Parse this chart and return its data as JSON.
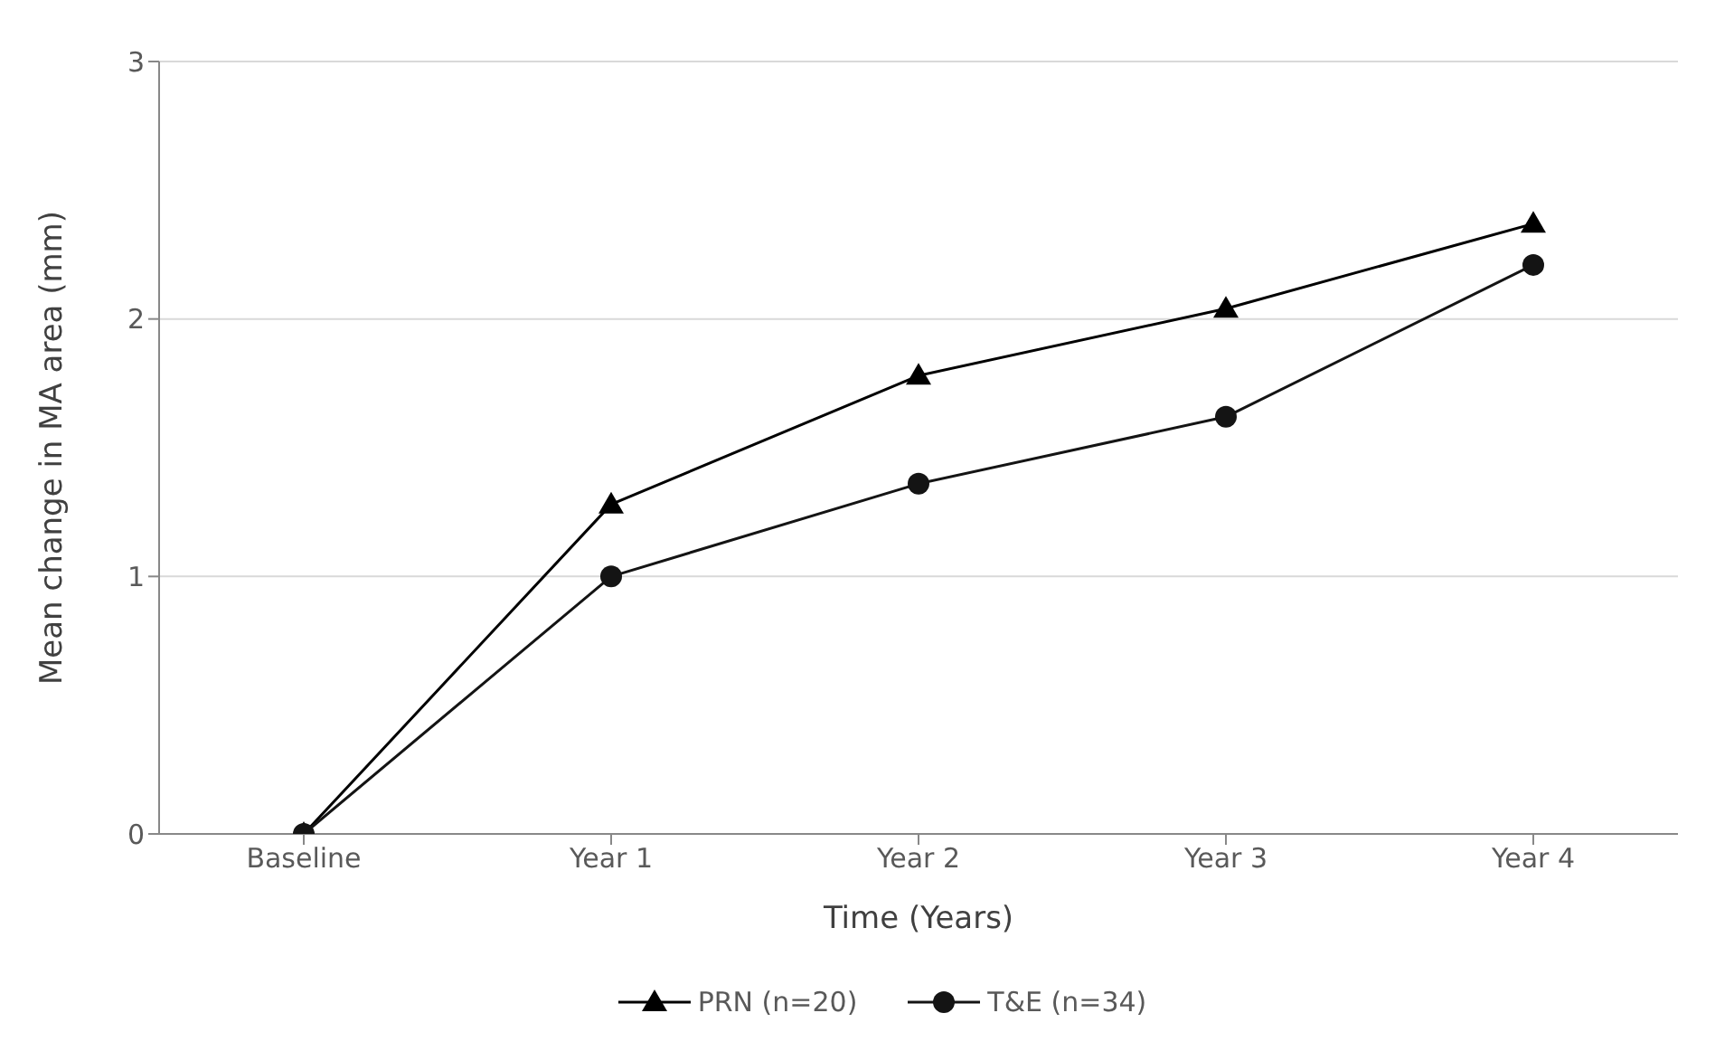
{
  "chart_data": {
    "type": "line",
    "xlabel": "Time (Years)",
    "ylabel": "Mean change in MA area (mm)",
    "categories": [
      "Baseline",
      "Year 1",
      "Year 2",
      "Year 3",
      "Year 4"
    ],
    "ylim": [
      0,
      3
    ],
    "yticks": [
      0,
      1,
      2,
      3
    ],
    "grid": "y",
    "legend": "bottom",
    "series": [
      {
        "name": "PRN (n=20)",
        "color": "#000000",
        "marker": "triangle",
        "values": [
          0,
          1.28,
          1.78,
          2.04,
          2.37
        ]
      },
      {
        "name": "T&E (n=34)",
        "color": "#141414",
        "marker": "circle",
        "values": [
          0,
          1.0,
          1.36,
          1.62,
          2.21
        ]
      }
    ]
  }
}
